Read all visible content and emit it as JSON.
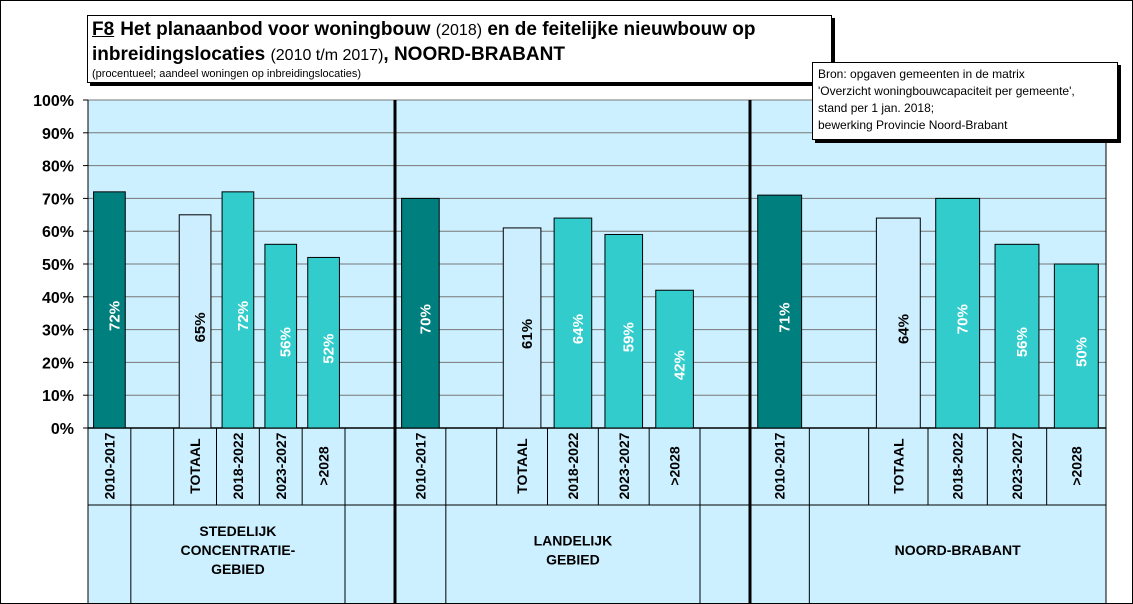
{
  "header": {
    "code": "F8",
    "title_part1": "Het planaanbod voor woningbouw",
    "title_year1": "(2018)",
    "title_part2": "en de feitelijke  nieuwbouw op",
    "title_part3": "inbreidingslocaties",
    "title_year2": "(2010 t/m 2017)",
    "title_part4": ", NOORD-BRABANT",
    "subtitle": "(procentueel; aandeel woningen op inbreidingslocaties)"
  },
  "source": {
    "lines": [
      "Bron: opgaven gemeenten in de matrix",
      "'Overzicht woningbouwcapaciteit per gemeente',",
      "stand per 1 jan. 2018;",
      "bewerking Provincie Noord-Brabant"
    ]
  },
  "chart_data": {
    "type": "bar",
    "ylim": [
      0,
      100
    ],
    "yticks": [
      "0%",
      "10%",
      "20%",
      "30%",
      "40%",
      "50%",
      "60%",
      "70%",
      "80%",
      "90%",
      "100%"
    ],
    "grid": true,
    "colors": {
      "plot_bg": "#ccf0ff",
      "dark_teal": "#007f7f",
      "light_blue": "#cceeff",
      "teal": "#33cccc"
    },
    "groups": [
      {
        "label": [
          "STEDELIJK",
          "CONCENTRATIE-",
          "GEBIED"
        ],
        "bars": [
          {
            "category": "2010-2017",
            "value": 72,
            "label": "72%",
            "color": "dark_teal"
          },
          {
            "category": "",
            "value": null,
            "label": "",
            "color": ""
          },
          {
            "category": "TOTAAL",
            "value": 65,
            "label": "65%",
            "color": "light_blue"
          },
          {
            "category": "2018-2022",
            "value": 72,
            "label": "72%",
            "color": "teal"
          },
          {
            "category": "2023-2027",
            "value": 56,
            "label": "56%",
            "color": "teal"
          },
          {
            "category": ">2028",
            "value": 52,
            "label": "52%",
            "color": "teal"
          }
        ]
      },
      {
        "label": [
          "LANDELIJK",
          "GEBIED"
        ],
        "bars": [
          {
            "category": "2010-2017",
            "value": 70,
            "label": "70%",
            "color": "dark_teal"
          },
          {
            "category": "",
            "value": null,
            "label": "",
            "color": ""
          },
          {
            "category": "TOTAAL",
            "value": 61,
            "label": "61%",
            "color": "light_blue"
          },
          {
            "category": "2018-2022",
            "value": 64,
            "label": "64%",
            "color": "teal"
          },
          {
            "category": "2023-2027",
            "value": 59,
            "label": "59%",
            "color": "teal"
          },
          {
            "category": ">2028",
            "value": 42,
            "label": "42%",
            "color": "teal"
          }
        ]
      },
      {
        "label": [
          "NOORD-BRABANT"
        ],
        "bars": [
          {
            "category": "2010-2017",
            "value": 71,
            "label": "71%",
            "color": "dark_teal"
          },
          {
            "category": "",
            "value": null,
            "label": "",
            "color": ""
          },
          {
            "category": "TOTAAL",
            "value": 64,
            "label": "64%",
            "color": "light_blue"
          },
          {
            "category": "2018-2022",
            "value": 70,
            "label": "70%",
            "color": "teal"
          },
          {
            "category": "2023-2027",
            "value": 56,
            "label": "56%",
            "color": "teal"
          },
          {
            "category": ">2028",
            "value": 50,
            "label": "50%",
            "color": "teal"
          }
        ]
      }
    ]
  }
}
